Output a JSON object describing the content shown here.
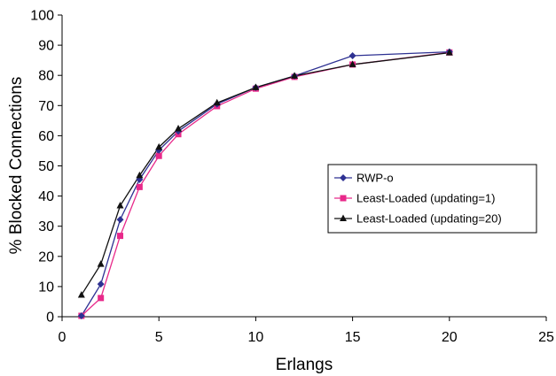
{
  "chart_data": {
    "type": "line",
    "title": "",
    "xlabel": "Erlangs",
    "ylabel": "% Blocked Connections",
    "xlim": [
      0,
      25
    ],
    "ylim": [
      0,
      100
    ],
    "xticks": [
      0,
      5,
      10,
      15,
      20,
      25
    ],
    "yticks": [
      0,
      10,
      20,
      30,
      40,
      50,
      60,
      70,
      80,
      90,
      100
    ],
    "grid": false,
    "legend_position": "right",
    "series": [
      {
        "name": "RWP-o",
        "color": "#2e3192",
        "marker": "diamond",
        "x": [
          1,
          2,
          3,
          4,
          5,
          6,
          8,
          10,
          12,
          15,
          20
        ],
        "y": [
          0.3,
          10.8,
          32.2,
          45.5,
          55.2,
          61.5,
          70.5,
          76.0,
          79.8,
          86.5,
          87.8
        ]
      },
      {
        "name": "Least-Loaded (updating=1)",
        "color": "#e8298a",
        "marker": "square",
        "x": [
          1,
          2,
          3,
          4,
          5,
          6,
          8,
          10,
          12,
          15,
          20
        ],
        "y": [
          0.3,
          6.2,
          26.8,
          43.0,
          53.3,
          60.5,
          69.8,
          75.6,
          79.5,
          83.6,
          87.6
        ]
      },
      {
        "name": "Least-Loaded (updating=20)",
        "color": "#111111",
        "marker": "triangle",
        "x": [
          1,
          2,
          3,
          4,
          5,
          6,
          8,
          10,
          12,
          15,
          20
        ],
        "y": [
          7.2,
          17.4,
          36.8,
          46.8,
          56.2,
          62.3,
          70.9,
          76.0,
          79.8,
          83.6,
          87.5
        ]
      }
    ]
  }
}
